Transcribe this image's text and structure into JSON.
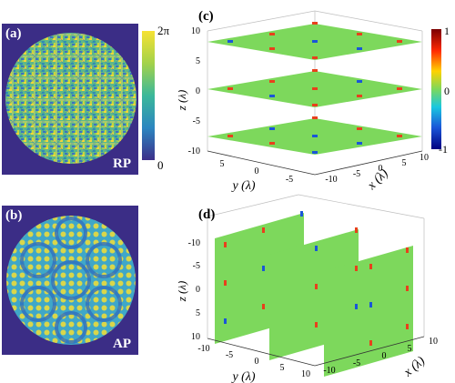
{
  "panel_a": {
    "label": "(a)",
    "tag": "RP"
  },
  "panel_b": {
    "label": "(b)",
    "tag": "AP"
  },
  "phase_colorbar": {
    "max_label": "2π",
    "min_label": "0"
  },
  "panel_c": {
    "label": "(c)",
    "z_axis": {
      "label": "z (λ)",
      "ticks": [
        "10",
        "5",
        "0",
        "-5",
        "-10"
      ]
    },
    "y_axis": {
      "label": "y (λ)",
      "ticks": [
        "5",
        "0",
        "-5"
      ]
    },
    "x_axis": {
      "label": "x (λ)",
      "ticks": [
        "-10",
        "-5",
        "0",
        "5",
        "10"
      ]
    },
    "colorbar": {
      "ticks": [
        "1",
        "0",
        "-1"
      ]
    }
  },
  "panel_d": {
    "label": "(d)",
    "z_axis": {
      "label": "z (λ)",
      "ticks": [
        "-10",
        "-5",
        "0",
        "5",
        "10"
      ]
    },
    "y_axis": {
      "label": "y (λ)",
      "ticks": [
        "-10",
        "-5",
        "0",
        "5",
        "10"
      ]
    },
    "x_axis": {
      "label": "x (λ)",
      "ticks": [
        "-10",
        "-5",
        "0",
        "5",
        "10"
      ]
    }
  },
  "colors": {
    "phase_bg": "#3b2d86",
    "field_green": "#7dd85c",
    "peak_pos": "#e8401c",
    "peak_neg": "#1a56d8"
  }
}
